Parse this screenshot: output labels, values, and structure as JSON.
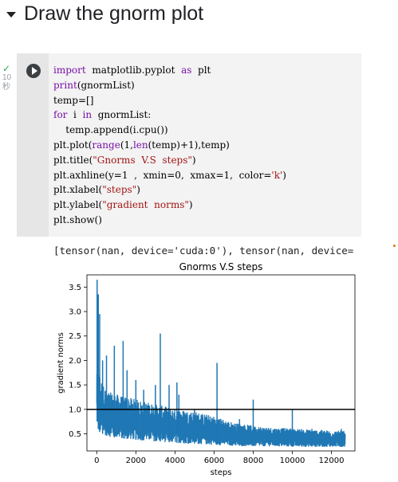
{
  "section": {
    "title": "Draw the gnorm plot"
  },
  "cell": {
    "status_time": "10",
    "status_unit": "秒",
    "code_lines": [
      "import  matplotlib.pyplot  as  plt",
      "print(gnormList)",
      "temp=[]",
      "for  i  in  gnormList:",
      "    temp.append(i.cpu())",
      "plt.plot(range(1,len(temp)+1),temp)",
      "plt.title(\"Gnorms  V.S  steps\")",
      "plt.axhline(y=1  ,  xmin=0,  xmax=1,  color='k')",
      "plt.xlabel(\"steps\")",
      "plt.ylabel(\"gradient  norms\")",
      "plt.show()"
    ]
  },
  "output": {
    "text": "[tensor(nan, device='cuda:0'), tensor(nan, device="
  },
  "chart_data": {
    "type": "line",
    "title": "Gnorms V.S steps",
    "xlabel": "steps",
    "ylabel": "gradient norms",
    "xlim": [
      -500,
      13200
    ],
    "ylim": [
      0.15,
      3.75
    ],
    "xticks": [
      0,
      2000,
      4000,
      6000,
      8000,
      10000,
      12000
    ],
    "yticks": [
      0.5,
      1.0,
      1.5,
      2.0,
      2.5,
      3.0,
      3.5
    ],
    "ytick_labels": [
      "0.5",
      "1.0",
      "1.5",
      "2.0",
      "2.5",
      "3.0",
      "3.5"
    ],
    "grid": false,
    "series": [
      {
        "color": "#1f77b4",
        "envelope_x": [
          0,
          100,
          300,
          600,
          1000,
          1500,
          2000,
          3000,
          4000,
          5000,
          6000,
          7000,
          8000,
          9000,
          10000,
          11000,
          12000,
          12700
        ],
        "envelope_upper": [
          2.2,
          1.8,
          1.5,
          1.35,
          1.3,
          1.25,
          1.2,
          1.1,
          1.0,
          0.95,
          0.85,
          0.72,
          0.66,
          0.62,
          0.6,
          0.58,
          0.56,
          0.55
        ],
        "envelope_lower": [
          0.8,
          0.55,
          0.5,
          0.45,
          0.42,
          0.4,
          0.38,
          0.35,
          0.32,
          0.3,
          0.28,
          0.26,
          0.25,
          0.25,
          0.24,
          0.24,
          0.24,
          0.24
        ],
        "spikes": [
          {
            "x": 20,
            "y": 3.65
          },
          {
            "x": 80,
            "y": 3.35
          },
          {
            "x": 150,
            "y": 2.95
          },
          {
            "x": 300,
            "y": 2.0
          },
          {
            "x": 500,
            "y": 2.1
          },
          {
            "x": 900,
            "y": 2.3
          },
          {
            "x": 1350,
            "y": 2.4
          },
          {
            "x": 1550,
            "y": 1.8
          },
          {
            "x": 2000,
            "y": 1.6
          },
          {
            "x": 2400,
            "y": 1.4
          },
          {
            "x": 3000,
            "y": 1.5
          },
          {
            "x": 3250,
            "y": 2.55
          },
          {
            "x": 3700,
            "y": 1.5
          },
          {
            "x": 4100,
            "y": 1.55
          },
          {
            "x": 4200,
            "y": 1.3
          },
          {
            "x": 5000,
            "y": 1.0
          },
          {
            "x": 6150,
            "y": 1.95
          },
          {
            "x": 7300,
            "y": 0.8
          },
          {
            "x": 8000,
            "y": 1.2
          },
          {
            "x": 10000,
            "y": 1.0
          },
          {
            "x": 11000,
            "y": 0.6
          },
          {
            "x": 12500,
            "y": 0.6
          }
        ]
      }
    ],
    "hline": {
      "y": 1.0,
      "color": "#000000"
    }
  }
}
